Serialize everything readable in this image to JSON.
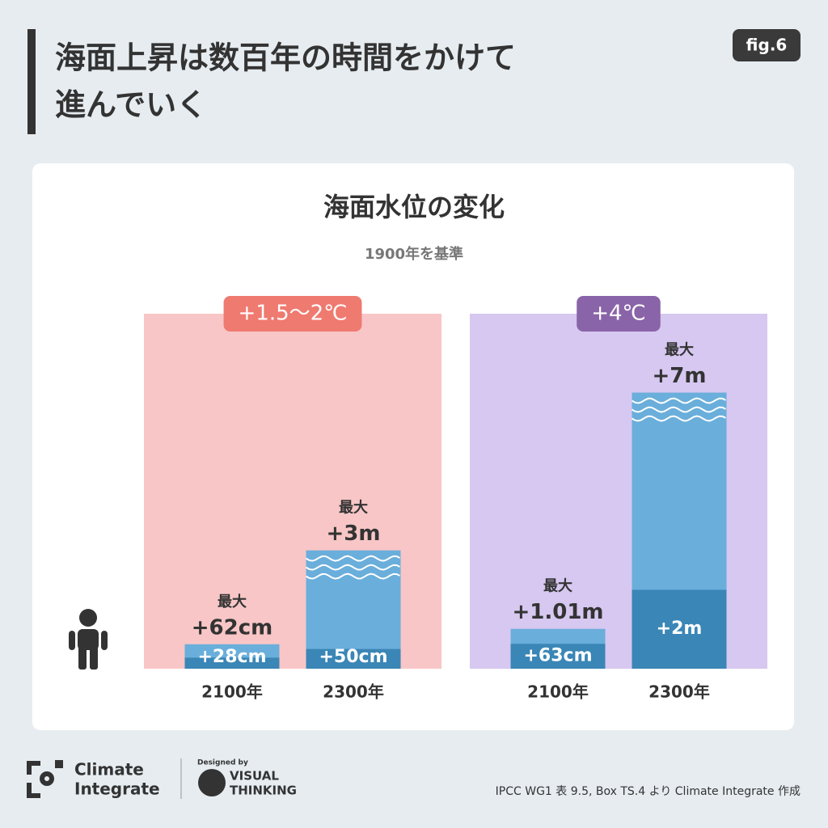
{
  "header": {
    "title_lines": [
      "海面上昇は数百年の時間をかけて",
      "進んでいく"
    ],
    "badge": "fig.6"
  },
  "chart_heading": {
    "title": "海面水位の変化",
    "subtitle": "1900年を基準"
  },
  "chart_data": [
    {
      "type": "bar",
      "label": "+1.5～2℃",
      "label_color": "#ef7a70",
      "color": "#f8c6c6",
      "categories": [
        "2100年",
        "2300年"
      ],
      "ylim": [
        0,
        9
      ],
      "series": [
        {
          "color": "#3a86b6",
          "values": [
            0.28,
            0.5
          ],
          "value_labels": [
            "+28cm",
            "+50cm"
          ]
        },
        {
          "name": "最大",
          "color": "#6aaedb",
          "values": [
            0.62,
            3
          ],
          "value_labels": [
            "+62cm",
            "+3m"
          ]
        }
      ]
    },
    {
      "type": "bar",
      "label": "+4℃",
      "label_color": "#8a64a8",
      "color": "#d6c8f0",
      "categories": [
        "2100年",
        "2300年"
      ],
      "ylim": [
        0,
        9
      ],
      "series": [
        {
          "color": "#3a86b6",
          "values": [
            0.63,
            2
          ],
          "value_labels": [
            "+63cm",
            "+2m"
          ]
        },
        {
          "name": "最大",
          "color": "#6aaedb",
          "values": [
            1.01,
            7
          ],
          "value_labels": [
            "+1.01m",
            "+7m"
          ]
        }
      ]
    }
  ],
  "footer": {
    "logo_line1": "Climate",
    "logo_line2": "Integrate",
    "designed_by": "Designed by",
    "vt_line1": "VISUAL",
    "vt_line2": "THINKING",
    "source": "IPCC WG1 表 9.5, Box TS.4 より Climate Integrate 作成"
  }
}
